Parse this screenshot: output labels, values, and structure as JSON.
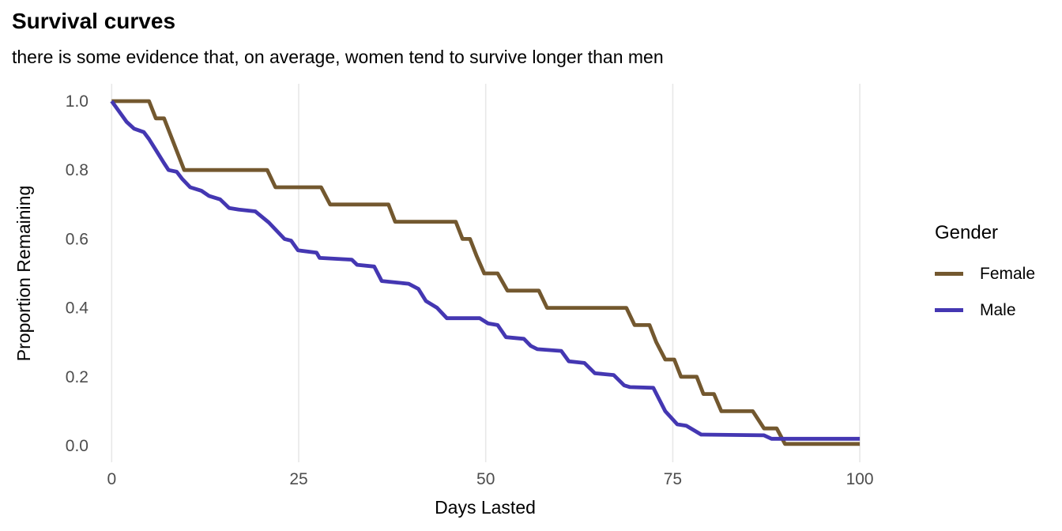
{
  "chart_data": {
    "type": "line",
    "subtype": "survival-step-curves",
    "title": "Survival curves",
    "subtitle": "there is some evidence that, on average, women tend to survive longer than men",
    "xlabel": "Days Lasted",
    "ylabel": "Proportion Remaining",
    "xlim": [
      0,
      100
    ],
    "ylim": [
      0.0,
      1.0
    ],
    "xticks": [
      "0",
      "25",
      "50",
      "75",
      "100"
    ],
    "yticks": [
      "0.0",
      "0.2",
      "0.4",
      "0.6",
      "0.8",
      "1.0"
    ],
    "grid": "vertical-major-only",
    "grid_color": "#E8E8E8",
    "tick_label_color": "#4D4D4D",
    "background_color": "#FFFFFF",
    "legend": {
      "title": "Gender",
      "position": "right",
      "entries": [
        {
          "label": "Female",
          "color": "#73582F"
        },
        {
          "label": "Male",
          "color": "#4437B2"
        }
      ]
    },
    "series": [
      {
        "name": "Female",
        "color": "#73582F",
        "points": [
          [
            0,
            1.0
          ],
          [
            5,
            1.0
          ],
          [
            5.9,
            0.95
          ],
          [
            7,
            0.95
          ],
          [
            9.7,
            0.8
          ],
          [
            20.8,
            0.8
          ],
          [
            21.9,
            0.75
          ],
          [
            28,
            0.75
          ],
          [
            29.2,
            0.7
          ],
          [
            37,
            0.7
          ],
          [
            37.9,
            0.65
          ],
          [
            46,
            0.65
          ],
          [
            46.9,
            0.6
          ],
          [
            47.9,
            0.6
          ],
          [
            48.8,
            0.55
          ],
          [
            49.8,
            0.5
          ],
          [
            51.6,
            0.5
          ],
          [
            52.9,
            0.45
          ],
          [
            57.1,
            0.45
          ],
          [
            58.2,
            0.4
          ],
          [
            68.8,
            0.4
          ],
          [
            69.9,
            0.35
          ],
          [
            71.9,
            0.35
          ],
          [
            72.8,
            0.3
          ],
          [
            74,
            0.25
          ],
          [
            75.2,
            0.25
          ],
          [
            76.1,
            0.2
          ],
          [
            78.2,
            0.2
          ],
          [
            79.1,
            0.15
          ],
          [
            80.5,
            0.15
          ],
          [
            81.5,
            0.1
          ],
          [
            85.7,
            0.1
          ],
          [
            87.2,
            0.05
          ],
          [
            88.9,
            0.05
          ],
          [
            90,
            0.005
          ],
          [
            100,
            0.005
          ]
        ]
      },
      {
        "name": "Male",
        "color": "#4437B2",
        "points": [
          [
            0,
            1.0
          ],
          [
            1,
            0.97
          ],
          [
            2,
            0.94
          ],
          [
            3,
            0.92
          ],
          [
            4.3,
            0.91
          ],
          [
            5,
            0.89
          ],
          [
            6,
            0.855
          ],
          [
            7,
            0.82
          ],
          [
            7.6,
            0.8
          ],
          [
            8.7,
            0.795
          ],
          [
            9.4,
            0.775
          ],
          [
            10.5,
            0.75
          ],
          [
            12,
            0.74
          ],
          [
            13,
            0.725
          ],
          [
            14.5,
            0.715
          ],
          [
            15.7,
            0.69
          ],
          [
            17,
            0.685
          ],
          [
            19.2,
            0.68
          ],
          [
            21,
            0.648
          ],
          [
            23.1,
            0.6
          ],
          [
            24,
            0.595
          ],
          [
            24.9,
            0.567
          ],
          [
            27.4,
            0.56
          ],
          [
            27.8,
            0.545
          ],
          [
            32.1,
            0.54
          ],
          [
            32.8,
            0.525
          ],
          [
            35.1,
            0.52
          ],
          [
            36.1,
            0.478
          ],
          [
            39.7,
            0.47
          ],
          [
            41,
            0.455
          ],
          [
            42,
            0.42
          ],
          [
            43.5,
            0.4
          ],
          [
            44.8,
            0.37
          ],
          [
            49.2,
            0.37
          ],
          [
            50.3,
            0.355
          ],
          [
            51.6,
            0.35
          ],
          [
            52.7,
            0.315
          ],
          [
            55.1,
            0.31
          ],
          [
            56,
            0.29
          ],
          [
            56.9,
            0.28
          ],
          [
            60.1,
            0.275
          ],
          [
            61.1,
            0.245
          ],
          [
            63.2,
            0.24
          ],
          [
            64.6,
            0.21
          ],
          [
            67.1,
            0.205
          ],
          [
            68.5,
            0.175
          ],
          [
            69.3,
            0.17
          ],
          [
            72.4,
            0.168
          ],
          [
            74,
            0.1
          ],
          [
            75.6,
            0.062
          ],
          [
            76.8,
            0.058
          ],
          [
            78.8,
            0.032
          ],
          [
            87.2,
            0.03
          ],
          [
            88.2,
            0.02
          ],
          [
            100,
            0.02
          ]
        ]
      }
    ]
  }
}
